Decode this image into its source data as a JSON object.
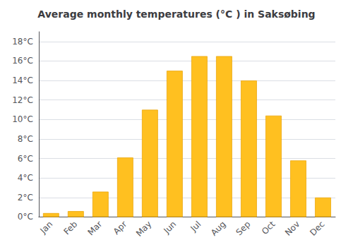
{
  "chart_data": {
    "type": "bar",
    "title": "Average monthly temperatures (°C ) in Saksøbing",
    "categories": [
      "Jan",
      "Feb",
      "Mar",
      "Apr",
      "May",
      "Jun",
      "Jul",
      "Aug",
      "Sep",
      "Oct",
      "Nov",
      "Dec"
    ],
    "values": [
      0.4,
      0.6,
      2.6,
      6.1,
      11.0,
      15.0,
      16.5,
      16.5,
      14.0,
      10.4,
      5.8,
      2.0
    ],
    "color": "#FFC020",
    "ylim": [
      0,
      19
    ],
    "yticks": [
      {
        "value": 0,
        "label": "0°C"
      },
      {
        "value": 2,
        "label": "2°C"
      },
      {
        "value": 4,
        "label": "4°C"
      },
      {
        "value": 6,
        "label": "6°C"
      },
      {
        "value": 8,
        "label": "8°C"
      },
      {
        "value": 10,
        "label": "10°C"
      },
      {
        "value": 12,
        "label": "12°C"
      },
      {
        "value": 14,
        "label": "14°C"
      },
      {
        "value": 16,
        "label": "16°C"
      },
      {
        "value": 18,
        "label": "18°C"
      }
    ],
    "grid": true
  }
}
